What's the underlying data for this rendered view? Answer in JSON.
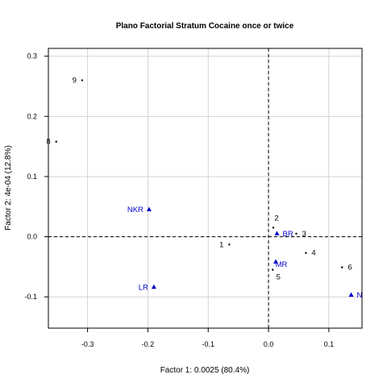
{
  "chart_data": {
    "type": "scatter",
    "title": "Plano Factorial Stratum Cocaine once or twice",
    "xlabel": "Factor 1: 0.0025 (80.4%)",
    "ylabel": "Factor 2: 4e-04 (12.8%)",
    "xlim": [
      -0.365,
      0.155
    ],
    "ylim": [
      -0.152,
      0.313
    ],
    "xticks": [
      -0.3,
      -0.2,
      -0.1,
      0.0,
      0.1
    ],
    "yticks": [
      -0.1,
      0.0,
      0.1,
      0.2,
      0.3
    ],
    "xtick_labels": [
      "-0.3",
      "-0.2",
      "-0.1",
      "0.0",
      "0.1"
    ],
    "ytick_labels": [
      "-0.1",
      "0.0",
      "0.1",
      "0.2",
      "0.3"
    ],
    "grid": true,
    "reference_lines": {
      "x": 0,
      "y": 0,
      "style": "dashed"
    },
    "series": [
      {
        "marker": "point",
        "color": "#000000",
        "points": [
          {
            "label": "1",
            "x": -0.065,
            "y": -0.013
          },
          {
            "label": "2",
            "x": 0.008,
            "y": 0.015
          },
          {
            "label": "3",
            "x": 0.046,
            "y": 0.005
          },
          {
            "label": "4",
            "x": 0.062,
            "y": -0.027
          },
          {
            "label": "5",
            "x": 0.007,
            "y": -0.055
          },
          {
            "label": "6",
            "x": 0.122,
            "y": -0.051
          },
          {
            "label": "8",
            "x": -0.352,
            "y": 0.158
          },
          {
            "label": "9",
            "x": -0.309,
            "y": 0.26
          }
        ]
      },
      {
        "marker": "triangle",
        "color": "#0000cc",
        "points": [
          {
            "label": "NKR",
            "x": -0.198,
            "y": 0.045
          },
          {
            "label": "BR",
            "x": 0.014,
            "y": 0.005
          },
          {
            "label": "MR",
            "x": 0.012,
            "y": -0.042
          },
          {
            "label": "LR",
            "x": -0.19,
            "y": -0.084
          },
          {
            "label": "N",
            "x": 0.137,
            "y": -0.097
          }
        ]
      }
    ]
  }
}
